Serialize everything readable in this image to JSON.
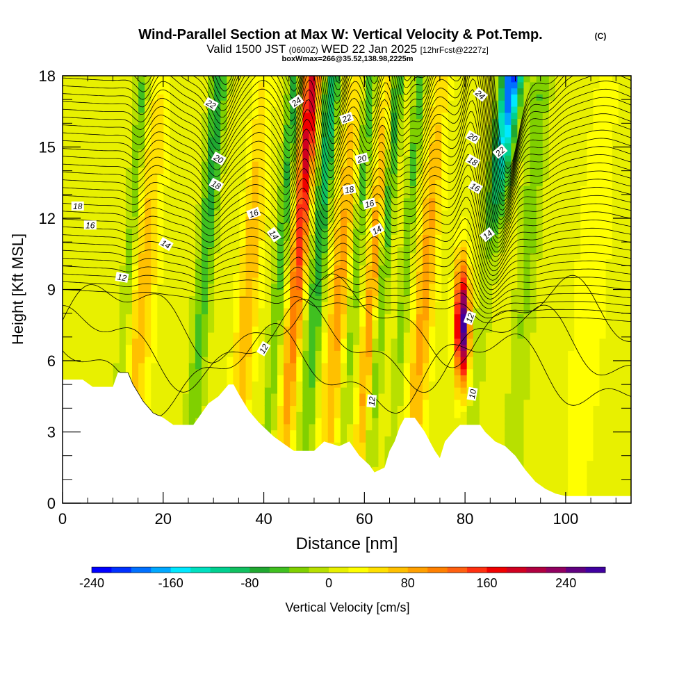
{
  "header": {
    "title": "Wind-Parallel Section at Max W: Vertical Velocity & Pot.Temp.",
    "copyright": "(C)",
    "valid_prefix": "Valid 1500 JST",
    "valid_utc": "(0600Z)",
    "valid_date": "WED 22 Jan 2025",
    "forecast": "[12hrFcst@2227z]",
    "boxwmax": "boxWmax=266@35.52,138.98,2225m"
  },
  "chart_data": {
    "type": "heatmap",
    "title": "Wind-Parallel Section at Max W: Vertical Velocity & Pot.Temp.",
    "xlabel": "Distance [nm]",
    "ylabel": "Height [Kft MSL]",
    "xlim": [
      0,
      113
    ],
    "ylim": [
      0,
      18
    ],
    "x_ticks": [
      0,
      20,
      40,
      60,
      80,
      100
    ],
    "x_tick_labels": [
      "0",
      "20",
      "40",
      "60",
      "80",
      "100"
    ],
    "y_ticks": [
      0,
      3,
      6,
      9,
      12,
      15,
      18
    ],
    "y_tick_labels": [
      "0",
      "3",
      "6",
      "9",
      "12",
      "15",
      "18"
    ],
    "colorbar": {
      "label": "Vertical Velocity [cm/s]",
      "min": -240,
      "max": 280,
      "step": 20,
      "tick_values": [
        -240,
        -160,
        -80,
        0,
        80,
        160,
        240
      ],
      "tick_labels": [
        "-240",
        "-160",
        "-80",
        "0",
        "80",
        "160",
        "240"
      ],
      "colors": [
        "#0000ff",
        "#0030ff",
        "#0070ff",
        "#00a8ff",
        "#00e8ff",
        "#00e0c0",
        "#00d090",
        "#10c060",
        "#20a830",
        "#40c020",
        "#80d000",
        "#b8e000",
        "#e8f000",
        "#ffff00",
        "#ffe000",
        "#ffc000",
        "#ffa000",
        "#ff8000",
        "#ff6010",
        "#ff3010",
        "#f00000",
        "#d00020",
        "#b00040",
        "#900060",
        "#600080",
        "#4000a0"
      ]
    },
    "terrain_kft": [
      [
        0,
        5.2
      ],
      [
        4,
        5.2
      ],
      [
        6,
        4.9
      ],
      [
        10,
        4.9
      ],
      [
        11,
        5.5
      ],
      [
        13,
        5.5
      ],
      [
        14,
        5.0
      ],
      [
        16,
        4.3
      ],
      [
        18,
        3.8
      ],
      [
        20,
        3.6
      ],
      [
        22,
        3.3
      ],
      [
        26,
        3.3
      ],
      [
        27,
        3.6
      ],
      [
        29,
        4.2
      ],
      [
        31,
        4.5
      ],
      [
        33,
        5.0
      ],
      [
        34,
        5.0
      ],
      [
        35,
        4.6
      ],
      [
        37,
        3.9
      ],
      [
        39,
        3.4
      ],
      [
        42,
        2.8
      ],
      [
        44,
        2.5
      ],
      [
        46,
        2.2
      ],
      [
        50,
        2.2
      ],
      [
        52,
        2.6
      ],
      [
        55,
        2.4
      ],
      [
        57,
        2.6
      ],
      [
        59,
        2.0
      ],
      [
        61,
        1.6
      ],
      [
        62,
        1.3
      ],
      [
        64,
        1.5
      ],
      [
        65,
        2.2
      ],
      [
        66,
        2.6
      ],
      [
        67,
        3.2
      ],
      [
        68,
        3.6
      ],
      [
        70,
        3.6
      ],
      [
        71,
        3.3
      ],
      [
        72,
        3.0
      ],
      [
        73,
        2.6
      ],
      [
        74,
        2.2
      ],
      [
        75,
        1.9
      ],
      [
        76,
        2.6
      ],
      [
        78,
        3.1
      ],
      [
        79,
        3.3
      ],
      [
        80,
        3.3
      ],
      [
        82,
        3.3
      ],
      [
        83,
        3.3
      ],
      [
        84,
        3.0
      ],
      [
        86,
        2.6
      ],
      [
        88,
        2.4
      ],
      [
        90,
        2.0
      ],
      [
        92,
        1.4
      ],
      [
        94,
        0.9
      ],
      [
        96,
        0.6
      ],
      [
        98,
        0.4
      ],
      [
        100,
        0.3
      ],
      [
        103,
        0.3
      ],
      [
        113,
        0.3
      ]
    ],
    "updraft_columns": [
      {
        "x": 16,
        "w": 2.5,
        "amp": 60
      },
      {
        "x": 37,
        "w": 2.0,
        "amp": 70
      },
      {
        "x": 46.5,
        "w": 1.6,
        "amp": 190
      },
      {
        "x": 55,
        "w": 2.0,
        "amp": 80
      },
      {
        "x": 61.5,
        "w": 1.3,
        "amp": 90
      },
      {
        "x": 72,
        "w": 2.0,
        "amp": 80
      },
      {
        "x": 79.5,
        "w": 1.4,
        "amp": 266
      },
      {
        "x": 105,
        "w": 3.0,
        "amp": 30
      }
    ],
    "downdraft_columns": [
      {
        "x": 13,
        "w": 1.3,
        "amp": 60
      },
      {
        "x": 28,
        "w": 1.6,
        "amp": 90
      },
      {
        "x": 43,
        "w": 1.3,
        "amp": 80
      },
      {
        "x": 50.5,
        "w": 1.6,
        "amp": 110
      },
      {
        "x": 58,
        "w": 1.2,
        "amp": 70
      },
      {
        "x": 63.5,
        "w": 1.2,
        "amp": 80
      },
      {
        "x": 68,
        "w": 1.2,
        "amp": 60
      },
      {
        "x": 84,
        "w": 2.0,
        "amp": 230
      },
      {
        "x": 92,
        "w": 2.0,
        "amp": 50
      }
    ],
    "isentrope_labels": [
      {
        "text": "22",
        "x": 29.5,
        "y": 16.8,
        "rot": 30
      },
      {
        "text": "24",
        "x": 46.5,
        "y": 16.9,
        "rot": -35
      },
      {
        "text": "22",
        "x": 56.5,
        "y": 16.2,
        "rot": -20
      },
      {
        "text": "24",
        "x": 83,
        "y": 17.2,
        "rot": 40
      },
      {
        "text": "20",
        "x": 31,
        "y": 14.5,
        "rot": 30
      },
      {
        "text": "20",
        "x": 59.5,
        "y": 14.5,
        "rot": -15
      },
      {
        "text": "20",
        "x": 81.5,
        "y": 15.4,
        "rot": 30
      },
      {
        "text": "22",
        "x": 87,
        "y": 14.8,
        "rot": -40
      },
      {
        "text": "18",
        "x": 30.5,
        "y": 13.4,
        "rot": 30
      },
      {
        "text": "18",
        "x": 57,
        "y": 13.2,
        "rot": -10
      },
      {
        "text": "18",
        "x": 81.5,
        "y": 14.4,
        "rot": 30
      },
      {
        "text": "16",
        "x": 82,
        "y": 13.3,
        "rot": 30
      },
      {
        "text": "18",
        "x": 3,
        "y": 12.5,
        "rot": 0
      },
      {
        "text": "16",
        "x": 61,
        "y": 12.6,
        "rot": -15
      },
      {
        "text": "16",
        "x": 38,
        "y": 12.2,
        "rot": -20
      },
      {
        "text": "16",
        "x": 5.5,
        "y": 11.7,
        "rot": 0
      },
      {
        "text": "14",
        "x": 20.5,
        "y": 10.9,
        "rot": 30
      },
      {
        "text": "14",
        "x": 42,
        "y": 11.3,
        "rot": 55
      },
      {
        "text": "14",
        "x": 62.5,
        "y": 11.5,
        "rot": -30
      },
      {
        "text": "14",
        "x": 84.5,
        "y": 11.3,
        "rot": -40
      },
      {
        "text": "12",
        "x": 11.8,
        "y": 9.5,
        "rot": 10
      },
      {
        "text": "12",
        "x": 40,
        "y": 6.5,
        "rot": -60
      },
      {
        "text": "12",
        "x": 81,
        "y": 7.8,
        "rot": -70
      },
      {
        "text": "12",
        "x": 61.5,
        "y": 4.3,
        "rot": -85
      },
      {
        "text": "10",
        "x": 81.5,
        "y": 4.6,
        "rot": -80
      }
    ]
  }
}
